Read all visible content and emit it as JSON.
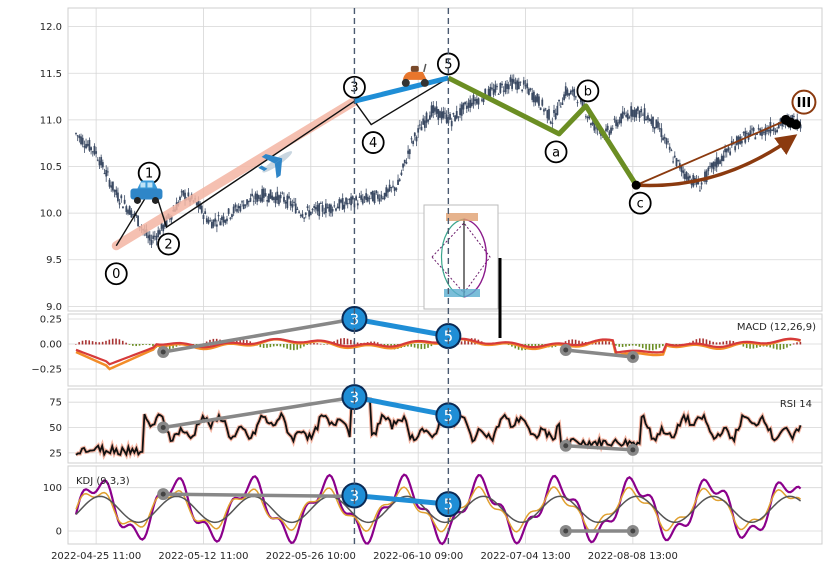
{
  "chart_data": {
    "type": "candlestick",
    "x_tick_labels": [
      "2022-04-25 11:00",
      "2022-05-12 11:00",
      "2022-05-26 10:00",
      "2022-06-10 09:00",
      "2022-07-04 13:00",
      "2022-08-08 13:00"
    ],
    "price_panel": {
      "ylim": [
        8.95,
        12.2
      ],
      "yticks": [
        9.0,
        9.5,
        10.0,
        10.5,
        11.0,
        11.5,
        12.0
      ],
      "ytick_labels": [
        "9.0",
        "9.5",
        "10.0",
        "10.5",
        "11.0",
        "11.5",
        "12.0"
      ],
      "close_path": [
        [
          0,
          10.85
        ],
        [
          3,
          10.65
        ],
        [
          6,
          10.2
        ],
        [
          9,
          9.95
        ],
        [
          11,
          9.7
        ],
        [
          13,
          9.85
        ],
        [
          16,
          10.2
        ],
        [
          18,
          10.1
        ],
        [
          20,
          9.9
        ],
        [
          22,
          9.95
        ],
        [
          25,
          10.1
        ],
        [
          28,
          10.2
        ],
        [
          31,
          10.15
        ],
        [
          34,
          10.0
        ],
        [
          37,
          10.05
        ],
        [
          40,
          10.1
        ],
        [
          43,
          10.15
        ],
        [
          46,
          10.2
        ],
        [
          48,
          10.3
        ],
        [
          50,
          10.75
        ],
        [
          53,
          11.1
        ],
        [
          56,
          11.0
        ],
        [
          59,
          11.2
        ],
        [
          62,
          11.3
        ],
        [
          65,
          11.4
        ],
        [
          67,
          11.35
        ],
        [
          69,
          11.2
        ],
        [
          71,
          11.0
        ],
        [
          73,
          11.3
        ],
        [
          75,
          11.25
        ],
        [
          77,
          10.95
        ],
        [
          79,
          10.85
        ],
        [
          81,
          11.0
        ],
        [
          83,
          11.1
        ],
        [
          85,
          11.05
        ],
        [
          87,
          10.9
        ],
        [
          89,
          10.6
        ],
        [
          91,
          10.4
        ],
        [
          93,
          10.3
        ],
        [
          95,
          10.5
        ],
        [
          97,
          10.65
        ],
        [
          99,
          10.8
        ],
        [
          101,
          10.85
        ],
        [
          103,
          10.9
        ],
        [
          105,
          10.95
        ],
        [
          107,
          11.0
        ],
        [
          108,
          10.95
        ]
      ],
      "waves": [
        {
          "label": "0",
          "x": 6,
          "y": 9.65
        },
        {
          "label": "1",
          "x": 11.5,
          "y": 10.3
        },
        {
          "label": "2",
          "x": 13.5,
          "y": 9.85
        },
        {
          "label": "3",
          "x": 41.5,
          "y": 11.2
        },
        {
          "label": "4",
          "x": 44,
          "y": 10.95
        },
        {
          "label": "5",
          "x": 55.5,
          "y": 11.45
        },
        {
          "label": "a",
          "x": 72,
          "y": 10.85
        },
        {
          "label": "b",
          "x": 76,
          "y": 11.15
        },
        {
          "label": "c",
          "x": 83.5,
          "y": 10.3
        }
      ],
      "target_label": "III",
      "markers": [
        "car",
        "airplane",
        "scooter"
      ]
    },
    "macd_panel": {
      "label": "MACD (12,26,9)",
      "ylim": [
        -0.42,
        0.3
      ],
      "yticks": [
        0.25,
        0.0,
        -0.25
      ],
      "ytick_labels": [
        "0.25",
        "0.00",
        "−0.25"
      ],
      "wave3": -0.0,
      "wave5": -0.0
    },
    "rsi_panel": {
      "label": "RSI 14",
      "ylim": [
        15,
        88
      ],
      "yticks": [
        75,
        50,
        25
      ],
      "ytick_labels": [
        "75",
        "50",
        "25"
      ]
    },
    "kdj_panel": {
      "label": "KDJ (9,3,3)",
      "ylim": [
        -30,
        150
      ],
      "yticks": [
        100,
        0
      ],
      "ytick_labels": [
        "100",
        "0"
      ]
    },
    "divergence_labels": [
      "3",
      "5"
    ],
    "vlines_x": [
      41.5,
      55.5
    ]
  }
}
